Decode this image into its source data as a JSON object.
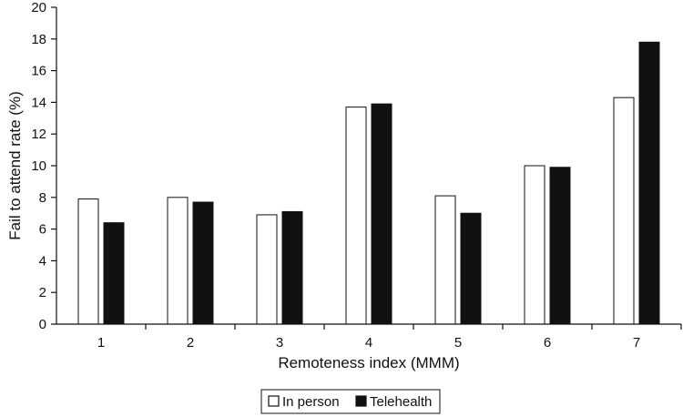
{
  "chart_data": {
    "type": "bar",
    "title": "",
    "xlabel": "Remoteness index (MMM)",
    "ylabel": "Fail to attend rate (%)",
    "ylim": [
      0,
      20
    ],
    "yticks": [
      "0",
      "2",
      "4",
      "6",
      "8",
      "10",
      "12",
      "14",
      "16",
      "18",
      "20"
    ],
    "categories": [
      "1",
      "2",
      "3",
      "4",
      "5",
      "6",
      "7"
    ],
    "series": [
      {
        "name": "In person",
        "color": "#ffffff",
        "values": [
          7.9,
          8.0,
          6.9,
          13.7,
          8.1,
          10.0,
          14.3
        ]
      },
      {
        "name": "Telehealth",
        "color": "#111111",
        "values": [
          6.4,
          7.7,
          7.1,
          13.9,
          7.0,
          9.9,
          17.8
        ]
      }
    ],
    "grid": false,
    "legend": "bottom-center"
  }
}
